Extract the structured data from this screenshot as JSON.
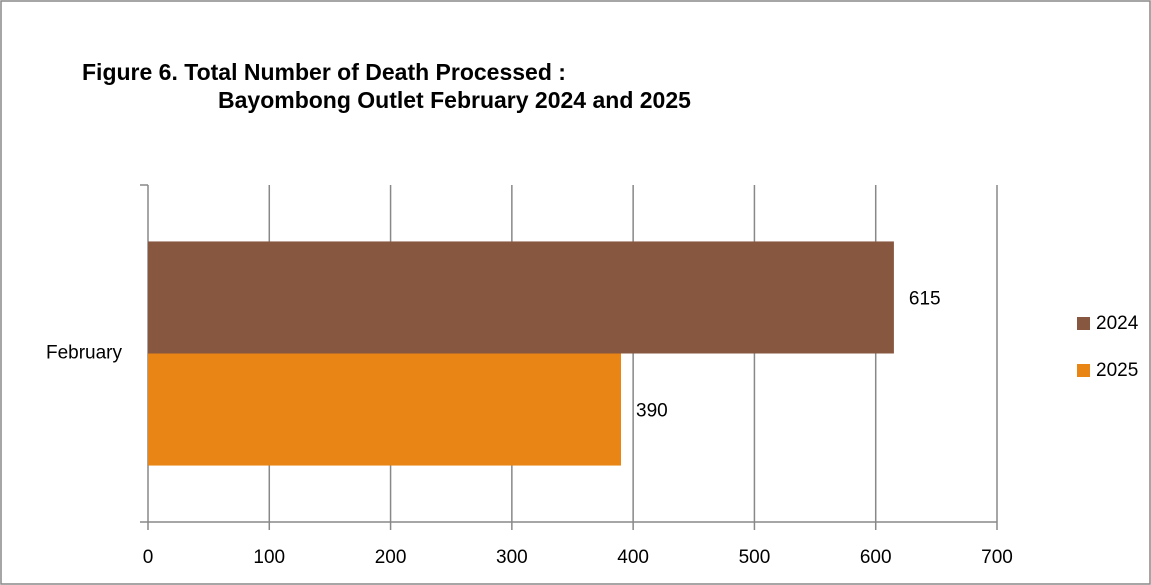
{
  "chart_data": {
    "type": "hbar",
    "title": [
      "Figure 6. Total Number of Death Processed :",
      "Bayombong Outlet February 2024 and 2025"
    ],
    "categories": [
      "February"
    ],
    "series": [
      {
        "name": "2024",
        "color": "#875740",
        "values": [
          615
        ]
      },
      {
        "name": "2025",
        "color": "#e88514",
        "values": [
          390
        ]
      }
    ],
    "xlim": [
      0,
      700
    ],
    "xticks": [
      0,
      100,
      200,
      300,
      400,
      500,
      600,
      700
    ],
    "grid": true,
    "legend": "right"
  }
}
